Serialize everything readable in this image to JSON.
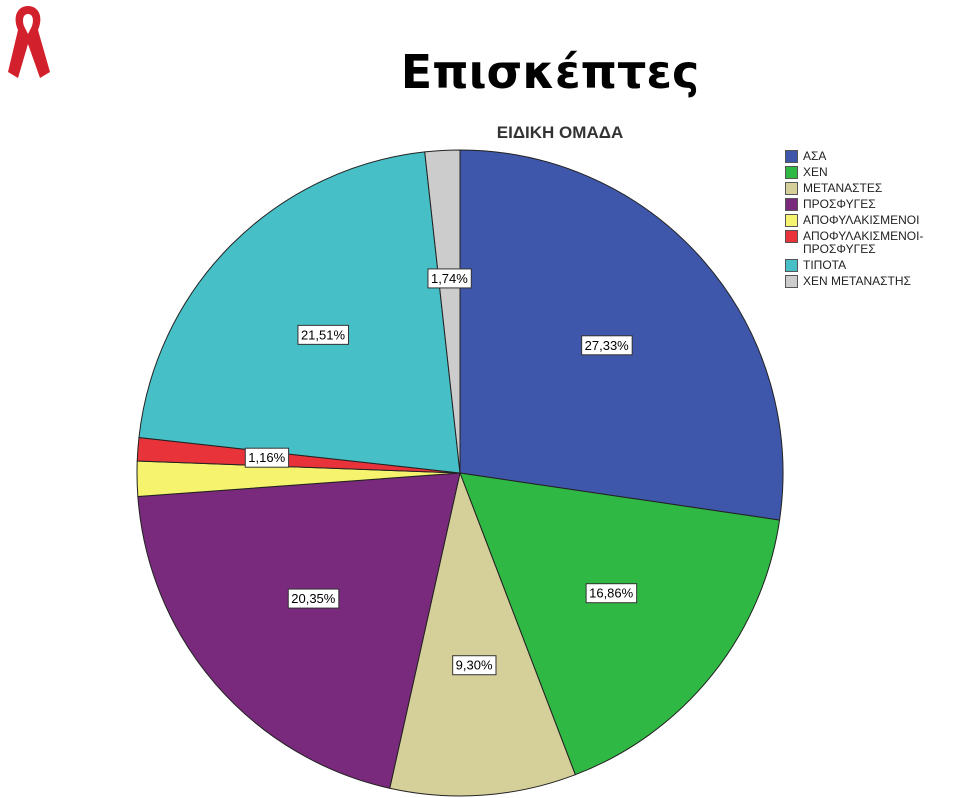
{
  "chart_data": {
    "type": "pie",
    "title": "Επισκέπτες",
    "subtitle": "ΕΙΔΙΚΗ ΟΜΑΔΑ",
    "categories": [
      "ΑΣΑ",
      "ΧΕΝ",
      "ΜΕΤΑΝΑΣΤΕΣ",
      "ΠΡΟΣΦΥΓΕΣ",
      "ΑΠΟΦΥΛΑΚΙΣΜΕΝΟΙ",
      "ΑΠΟΦΥΛΑΚΙΣΜΕΝΟΙ-ΠΡΟΣΦΥΓΕΣ",
      "ΤΙΠΟΤΑ",
      "ΧΕΝ ΜΕΤΑΝΑΣΤΗΣ"
    ],
    "values": [
      27.33,
      16.86,
      9.3,
      20.35,
      1.75,
      1.16,
      21.51,
      1.74
    ],
    "value_labels": [
      "27,33%",
      "16,86%",
      "9,30%",
      "20,35%",
      null,
      "1,16%",
      "21,51%",
      "1,74%"
    ],
    "colors": [
      "#3f57aa",
      "#2fb944",
      "#d5cf9a",
      "#7a2a7c",
      "#f6f46e",
      "#e8333a",
      "#47bfc6",
      "#cccccc"
    ],
    "legend": "right"
  }
}
